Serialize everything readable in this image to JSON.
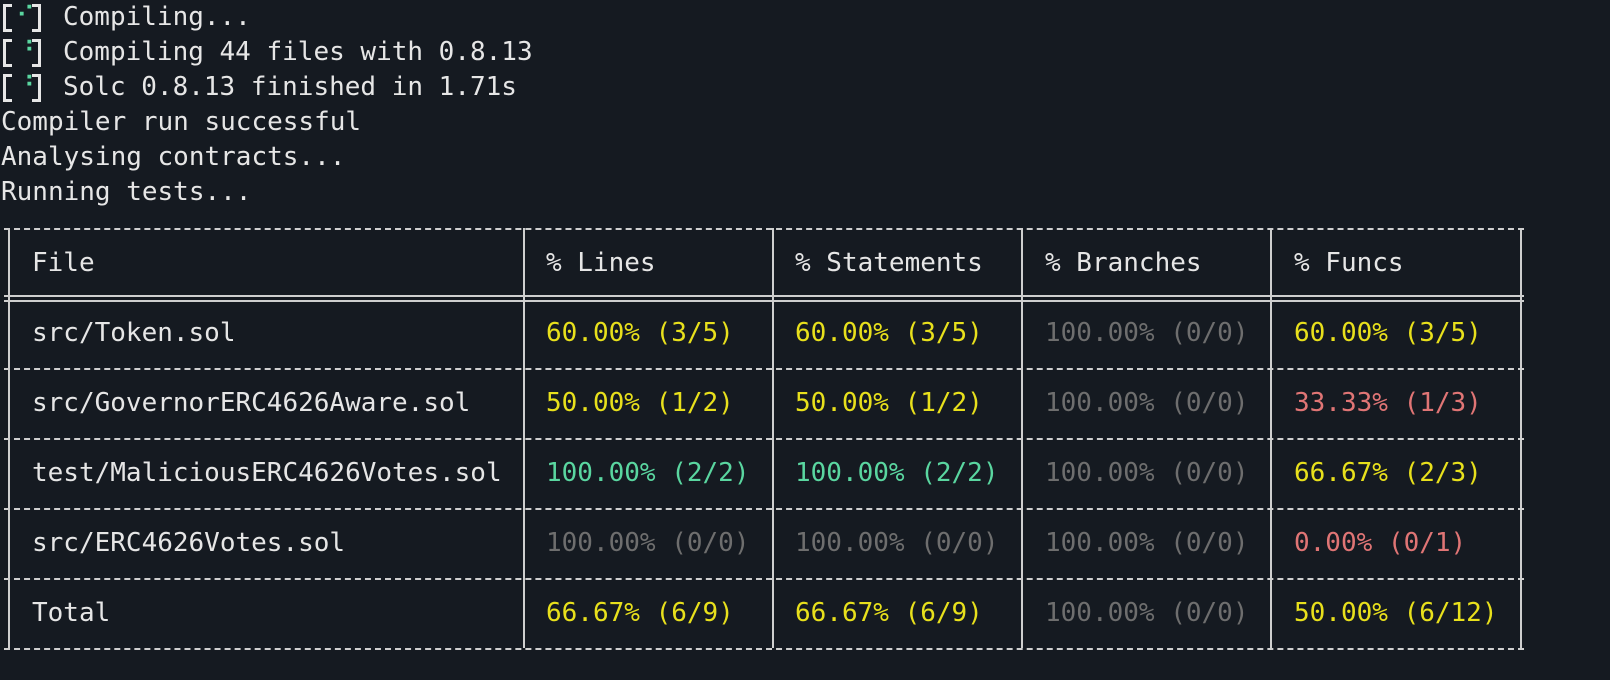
{
  "log": [
    {
      "spinner": "⠊",
      "text": "Compiling..."
    },
    {
      "spinner": "⠘",
      "text": "Compiling 44 files with 0.8.13"
    },
    {
      "spinner": "⠘",
      "text": "Solc 0.8.13 finished in 1.71s"
    },
    {
      "text": "Compiler run successful"
    },
    {
      "text": "Analysing contracts..."
    },
    {
      "text": "Running tests..."
    }
  ],
  "table": {
    "header": [
      "File",
      "% Lines",
      "% Statements",
      "% Branches",
      "% Funcs"
    ],
    "rows": [
      [
        {
          "text": "src/Token.sol"
        },
        {
          "text": "60.00% (3/5)",
          "color": "#e8e01c"
        },
        {
          "text": "60.00% (3/5)",
          "color": "#e8e01c"
        },
        {
          "text": "100.00% (0/0)",
          "color": "#6e6e6e"
        },
        {
          "text": "60.00% (3/5)",
          "color": "#e8e01c"
        }
      ],
      [
        {
          "text": "src/GovernorERC4626Aware.sol"
        },
        {
          "text": "50.00% (1/2)",
          "color": "#e8e01c"
        },
        {
          "text": "50.00% (1/2)",
          "color": "#e8e01c"
        },
        {
          "text": "100.00% (0/0)",
          "color": "#6e6e6e"
        },
        {
          "text": "33.33% (1/3)",
          "color": "#e07575"
        }
      ],
      [
        {
          "text": "test/MaliciousERC4626Votes.sol"
        },
        {
          "text": "100.00% (2/2)",
          "color": "#5ad6a0"
        },
        {
          "text": "100.00% (2/2)",
          "color": "#5ad6a0"
        },
        {
          "text": "100.00% (0/0)",
          "color": "#6e6e6e"
        },
        {
          "text": "66.67% (2/3)",
          "color": "#e8e01c"
        }
      ],
      [
        {
          "text": "src/ERC4626Votes.sol"
        },
        {
          "text": "100.00% (0/0)",
          "color": "#6e6e6e"
        },
        {
          "text": "100.00% (0/0)",
          "color": "#6e6e6e"
        },
        {
          "text": "100.00% (0/0)",
          "color": "#6e6e6e"
        },
        {
          "text": "0.00% (0/1)",
          "color": "#e07575"
        }
      ],
      [
        {
          "text": "Total"
        },
        {
          "text": "66.67% (6/9)",
          "color": "#e8e01c"
        },
        {
          "text": "66.67% (6/9)",
          "color": "#e8e01c"
        },
        {
          "text": "100.00% (0/0)",
          "color": "#6e6e6e"
        },
        {
          "text": "50.00% (6/12)",
          "color": "#e8e01c"
        }
      ]
    ]
  }
}
